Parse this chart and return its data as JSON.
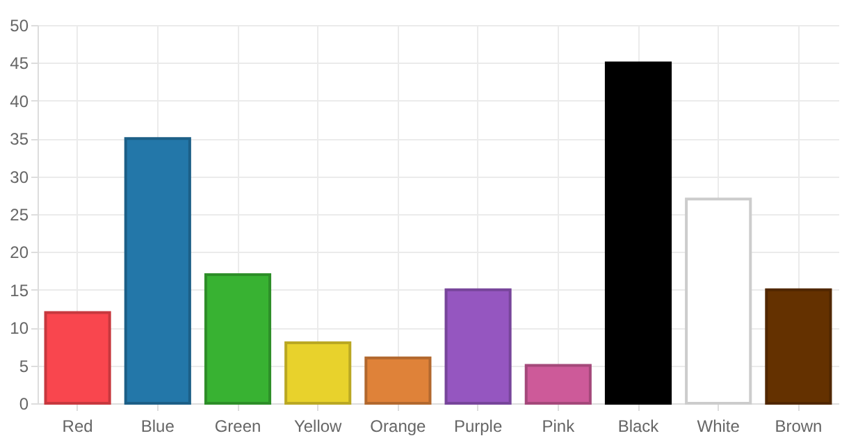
{
  "chart_data": {
    "type": "bar",
    "categories": [
      "Red",
      "Blue",
      "Green",
      "Yellow",
      "Orange",
      "Purple",
      "Pink",
      "Black",
      "White",
      "Brown"
    ],
    "values": [
      12,
      35,
      17,
      8,
      6,
      15,
      5,
      45,
      27,
      15
    ],
    "colors": [
      "#f9464e",
      "#2377a9",
      "#38b232",
      "#e8d22c",
      "#df8239",
      "#9556c0",
      "#cd5a99",
      "#000000",
      "#ffffff",
      "#643100"
    ],
    "ylim": [
      0,
      50
    ],
    "yticks": [
      0,
      5,
      10,
      15,
      20,
      25,
      30,
      35,
      40,
      45,
      50
    ],
    "grid": true
  }
}
